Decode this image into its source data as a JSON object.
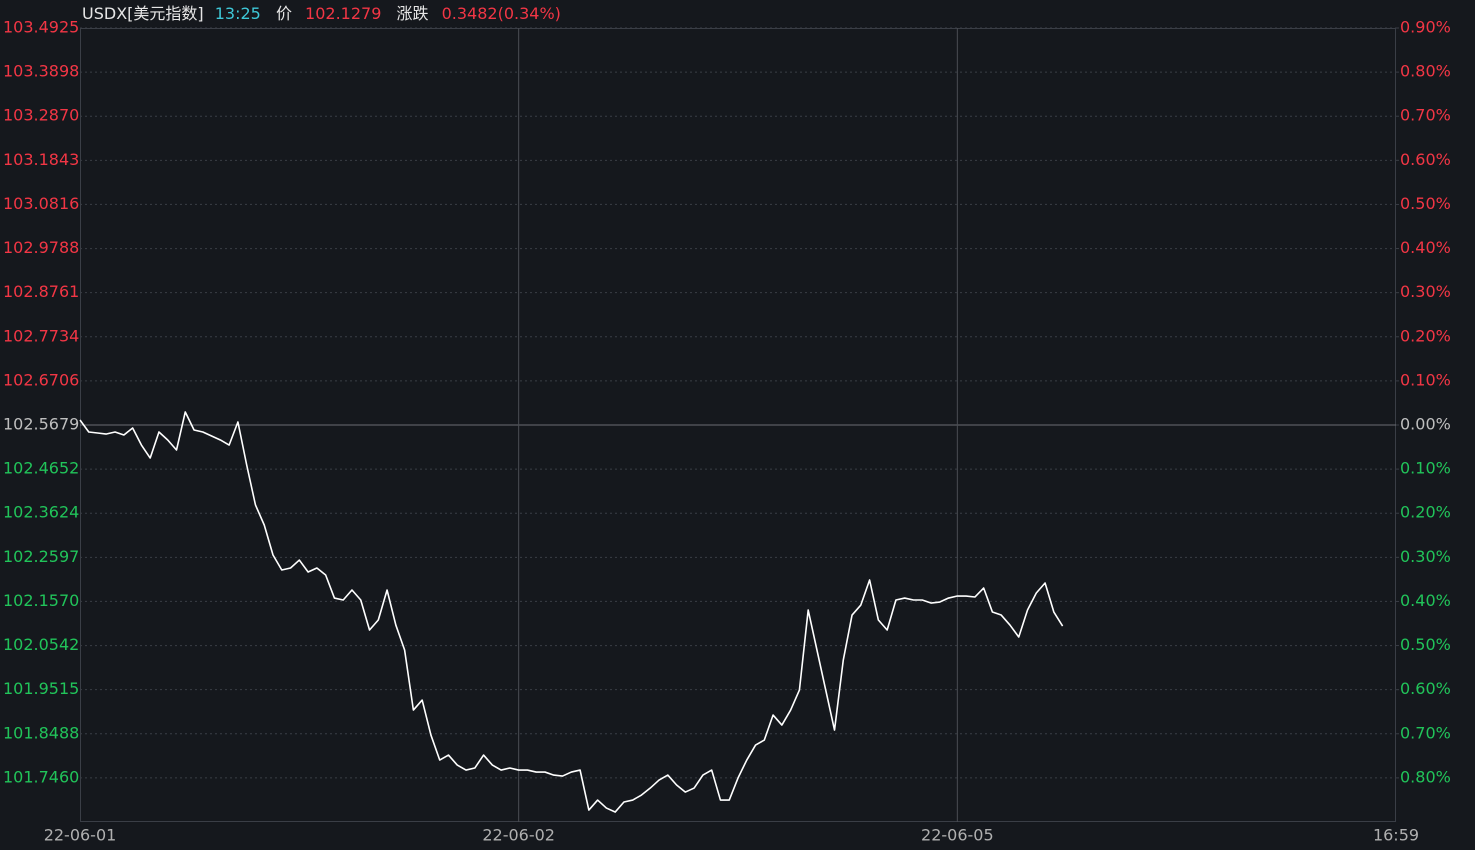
{
  "chart_data": {
    "type": "line",
    "title": "USDX[美元指数]",
    "time": "13:25",
    "price_label": "价",
    "price": 102.1279,
    "change_label": "涨跌",
    "change": "0.3482(0.34%)",
    "color": "#ffffff",
    "up_color": "#f23645",
    "down_color": "#21c45a",
    "flat_color": "#bfbfbf",
    "title_color": "#e6e6e6",
    "time_color": "#3ec8d8",
    "grid": true,
    "xlim": [
      0,
      150
    ],
    "xticks": [
      {
        "value": 0,
        "label": "22-06-01"
      },
      {
        "value": 50,
        "label": "22-06-02"
      },
      {
        "value": 100,
        "label": "22-06-05"
      },
      {
        "value": 150,
        "label": "16:59"
      }
    ],
    "ylim": [
      101.6433,
      103.4925
    ],
    "yticks": [
      103.4925,
      103.3898,
      {
        "value": 103.287,
        "label": "103.2870"
      },
      103.1843,
      103.0816,
      102.9788,
      102.8761,
      102.7734,
      102.6706,
      102.5679,
      102.4652,
      102.3624,
      102.2597,
      {
        "value": 102.157,
        "label": "102.1570"
      },
      102.0542,
      101.9515,
      101.8488,
      {
        "value": 101.746,
        "label": "101.7460"
      }
    ],
    "y2lim": [
      -0.9,
      0.9
    ],
    "y2ticks": [
      {
        "value": 0.9,
        "label": "0.90%"
      },
      {
        "value": 0.8,
        "label": "0.80%"
      },
      {
        "value": 0.7,
        "label": "0.70%"
      },
      {
        "value": 0.6,
        "label": "0.60%"
      },
      {
        "value": 0.5,
        "label": "0.50%"
      },
      {
        "value": 0.4,
        "label": "0.40%"
      },
      {
        "value": 0.3,
        "label": "0.30%"
      },
      {
        "value": 0.2,
        "label": "0.20%"
      },
      {
        "value": 0.1,
        "label": "0.10%"
      },
      {
        "value": 0,
        "label": "0.00%"
      },
      {
        "value": -0.1,
        "label": "0.10%"
      },
      {
        "value": -0.2,
        "label": "0.20%"
      },
      {
        "value": -0.3,
        "label": "0.30%"
      },
      {
        "value": -0.4,
        "label": "0.40%"
      },
      {
        "value": -0.5,
        "label": "0.50%"
      },
      {
        "value": -0.6,
        "label": "0.60%"
      },
      {
        "value": -0.7,
        "label": "0.70%"
      },
      {
        "value": -0.8,
        "label": "0.80%"
      }
    ],
    "values": [
      102.5795,
      102.5516,
      102.5493,
      102.5469,
      102.5516,
      102.5446,
      102.5609,
      102.5213,
      102.491,
      102.5516,
      102.533,
      102.5097,
      102.5982,
      102.5563,
      102.5516,
      102.5423,
      102.533,
      102.5213,
      102.5749,
      102.4747,
      102.3816,
      102.335,
      102.2651,
      102.2302,
      102.2348,
      102.2534,
      102.2255,
      102.2348,
      102.2185,
      102.1649,
      102.1603,
      102.1836,
      102.1603,
      102.0904,
      102.1137,
      102.1836,
      102.102,
      102.0438,
      101.904,
      101.9273,
      101.8458,
      101.7876,
      101.7992,
      101.7759,
      101.7643,
      101.769,
      101.7992,
      101.7759,
      101.7643,
      101.769,
      101.7643,
      101.7643,
      101.7596,
      101.7596,
      101.7526,
      101.7503,
      101.7596,
      101.7643,
      101.6711,
      101.6944,
      101.6758,
      101.6665,
      101.6898,
      101.6944,
      101.7061,
      101.7224,
      101.741,
      101.7526,
      101.7294,
      101.713,
      101.7224,
      101.7526,
      101.7643,
      101.6944,
      101.6944,
      101.7457,
      101.7876,
      101.8225,
      101.8342,
      101.8924,
      101.8691,
      101.904,
      101.9506,
      102.137,
      102.0438,
      101.9506,
      101.8575,
      102.0205,
      102.1253,
      102.1486,
      102.2069,
      102.1137,
      102.0904,
      102.1603,
      102.1649,
      102.1603,
      102.1603,
      102.1533,
      102.1556,
      102.1649,
      102.1696,
      102.1696,
      102.1673,
      102.1882,
      102.1323,
      102.1253,
      102.102,
      102.0741,
      102.137,
      102.1766,
      102.1999,
      102.1323,
      102.0997
    ]
  }
}
